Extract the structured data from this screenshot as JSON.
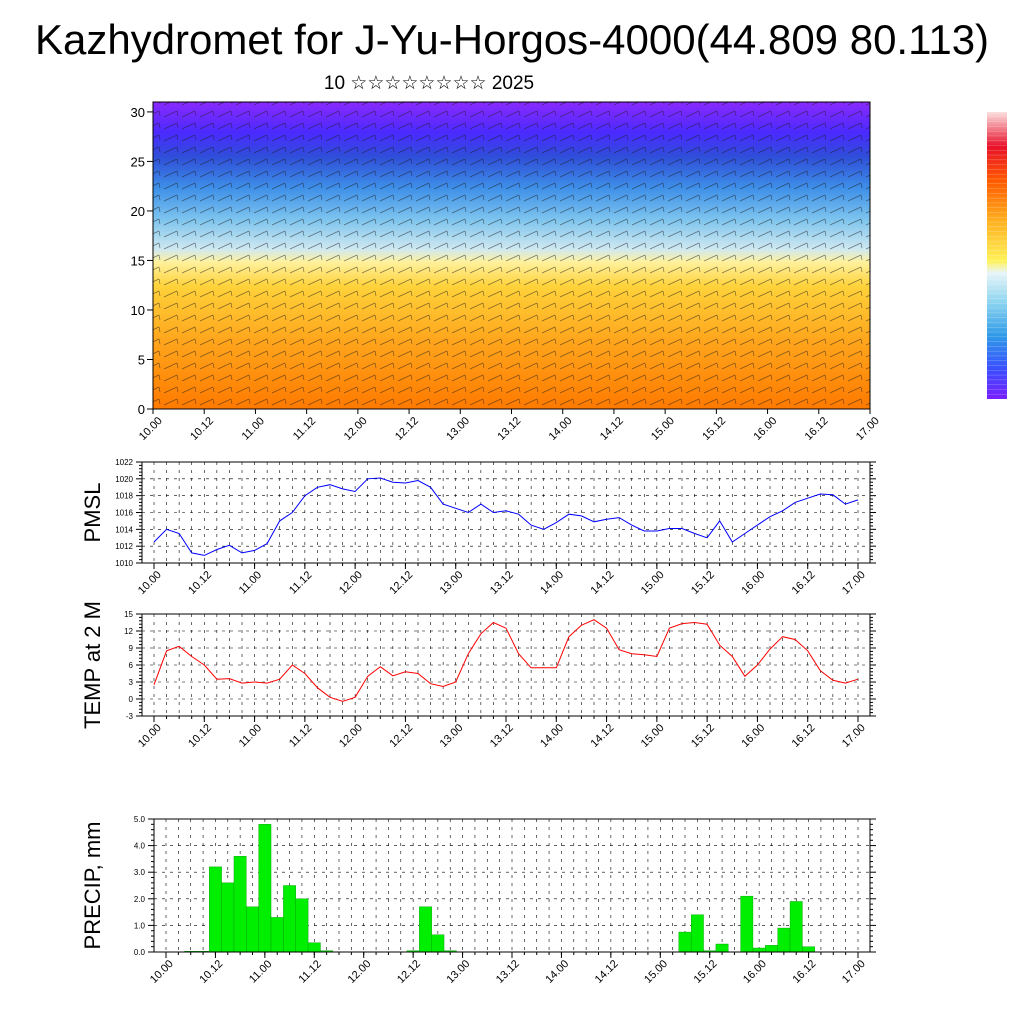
{
  "page": {
    "title": "Kazhydromet for J-Yu-Horgos-4000(44.809 80.113)",
    "subtitle": "10 ☆☆☆☆☆☆☆☆ 2025"
  },
  "colors": {
    "pmsl_line": "#0000ff",
    "temp_line": "#ff0000",
    "precip_bar": "#00ee00",
    "colorbar": [
      "#7a1fff",
      "#5a2cff",
      "#3b4cff",
      "#2f7ae8",
      "#3aa3ff",
      "#5fd0f0",
      "#b7e6f0",
      "#fff35a",
      "#ffd020",
      "#ffa010",
      "#ff6a00",
      "#ff2a10",
      "#e8102a",
      "#f0a0a8",
      "#fbe0e0"
    ]
  },
  "chart_data": [
    {
      "type": "heatmap",
      "name": "upper-panel",
      "x_ticks": [
        "10.00",
        "10.12",
        "11.00",
        "11.12",
        "12.00",
        "12.12",
        "13.00",
        "13.12",
        "14.00",
        "14.12",
        "15.00",
        "15.12",
        "16.00",
        "16.12",
        "17.00"
      ],
      "y_ticks": [
        0,
        5,
        10,
        15,
        20,
        25,
        30
      ],
      "ylim": [
        0,
        31
      ],
      "description_bands": "warm (orange/yellow) near 0-15, blue/purple above 15"
    },
    {
      "type": "line",
      "name": "pmsl",
      "ylabel": "PMSL",
      "ylim": [
        1010,
        1022
      ],
      "y_ticks": [
        1010,
        1012,
        1014,
        1016,
        1018,
        1020,
        1022
      ],
      "x_ticks": [
        "10.00",
        "10.12",
        "11.00",
        "11.12",
        "12.00",
        "12.12",
        "13.00",
        "13.12",
        "14.00",
        "14.12",
        "15.00",
        "15.12",
        "16.00",
        "16.12",
        "17.00"
      ],
      "values": [
        1012.5,
        1014.0,
        1013.5,
        1011.2,
        1010.9,
        1011.6,
        1012.1,
        1011.2,
        1011.5,
        1012.3,
        1015.0,
        1016.0,
        1018.0,
        1019.0,
        1019.3,
        1018.8,
        1018.5,
        1020.0,
        1020.1,
        1019.6,
        1019.5,
        1019.8,
        1019.0,
        1017.0,
        1016.5,
        1016.0,
        1017.0,
        1016.0,
        1016.2,
        1015.8,
        1014.5,
        1014.0,
        1014.8,
        1015.8,
        1015.6,
        1014.9,
        1015.2,
        1015.4,
        1014.5,
        1013.8,
        1013.8,
        1014.1,
        1014.1,
        1013.5,
        1013.0,
        1015.0,
        1012.5,
        1013.5,
        1014.5,
        1015.5,
        1016.2,
        1017.2,
        1017.7,
        1018.2,
        1018.1,
        1017.0,
        1017.5
      ]
    },
    {
      "type": "line",
      "name": "temp",
      "ylabel": "TEMP at 2 M",
      "ylim": [
        -3,
        15
      ],
      "y_ticks": [
        -3,
        0,
        3,
        6,
        9,
        12,
        15
      ],
      "x_ticks": [
        "10.00",
        "10.12",
        "11.00",
        "11.12",
        "12.00",
        "12.12",
        "13.00",
        "13.12",
        "14.00",
        "14.12",
        "15.00",
        "15.12",
        "16.00",
        "16.12",
        "17.00"
      ],
      "values": [
        2.5,
        8.5,
        9.3,
        7.5,
        6.0,
        3.5,
        3.6,
        2.8,
        3.0,
        2.8,
        3.5,
        6.0,
        4.5,
        2.0,
        0.3,
        -0.4,
        0.3,
        4.0,
        5.7,
        4.1,
        4.8,
        4.5,
        2.7,
        2.2,
        3.0,
        8.0,
        11.5,
        13.5,
        12.5,
        8.0,
        5.5,
        5.5,
        5.5,
        11.0,
        13.0,
        14.0,
        12.5,
        8.7,
        8.0,
        7.8,
        7.5,
        12.5,
        13.3,
        13.5,
        13.2,
        9.5,
        7.5,
        4.0,
        6.0,
        8.8,
        11.0,
        10.5,
        8.5,
        5.0,
        3.3,
        2.8,
        3.5
      ]
    },
    {
      "type": "bar",
      "name": "precip",
      "ylabel": "PRECIP, mm",
      "ylim": [
        0,
        5
      ],
      "y_ticks": [
        "0.0",
        "1.0",
        "2.0",
        "3.0",
        "4.0",
        "5.0"
      ],
      "x_ticks": [
        "10.00",
        "10.12",
        "11.00",
        "11.12",
        "12.00",
        "12.12",
        "13.00",
        "13.12",
        "14.00",
        "14.12",
        "15.00",
        "15.12",
        "16.00",
        "16.12",
        "17.00"
      ],
      "values": [
        0,
        0,
        0.03,
        0.03,
        3.2,
        2.6,
        3.6,
        1.7,
        4.8,
        1.3,
        2.5,
        2.0,
        0.35,
        0.05,
        0,
        0,
        0,
        0,
        0,
        0,
        0.05,
        1.7,
        0.65,
        0.05,
        0,
        0,
        0,
        0,
        0,
        0,
        0,
        0,
        0,
        0,
        0,
        0,
        0,
        0,
        0,
        0,
        0,
        0,
        0.75,
        1.4,
        0.05,
        0.3,
        0,
        2.1,
        0.15,
        0.25,
        0.9,
        1.9,
        0.2,
        0,
        0,
        0,
        0
      ]
    }
  ]
}
